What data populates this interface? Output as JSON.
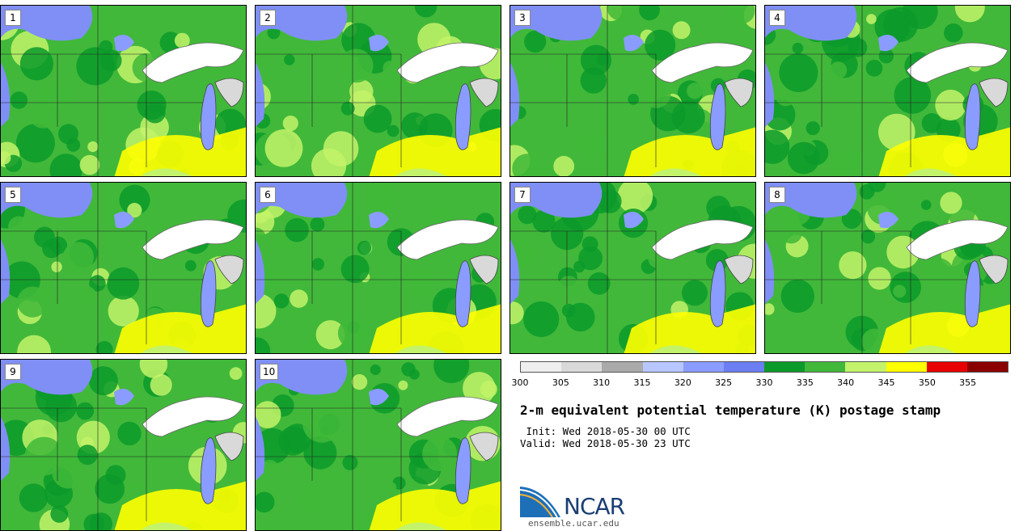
{
  "panels": [
    {
      "label": "1"
    },
    {
      "label": "2"
    },
    {
      "label": "3"
    },
    {
      "label": "4"
    },
    {
      "label": "5"
    },
    {
      "label": "6"
    },
    {
      "label": "7"
    },
    {
      "label": "8"
    },
    {
      "label": "9"
    },
    {
      "label": "10"
    }
  ],
  "colorbar": {
    "colors": [
      "#efefef",
      "#d9d9d9",
      "#aaaaaa",
      "#b8c6ff",
      "#8a9cff",
      "#6b7ef2",
      "#0c9a2a",
      "#41b83a",
      "#c3f36a",
      "#ffff00",
      "#e60000",
      "#8b0000"
    ],
    "tick_labels": [
      "300",
      "305",
      "310",
      "315",
      "320",
      "325",
      "330",
      "335",
      "340",
      "345",
      "350",
      "355"
    ]
  },
  "title": "2-m equivalent potential temperature (K) postage stamp",
  "init_line": " Init: Wed 2018-05-30 00 UTC",
  "valid_line": "Valid: Wed 2018-05-30 23 UTC",
  "logo": {
    "text": "NCAR",
    "site": "ensemble.ucar.edu"
  }
}
